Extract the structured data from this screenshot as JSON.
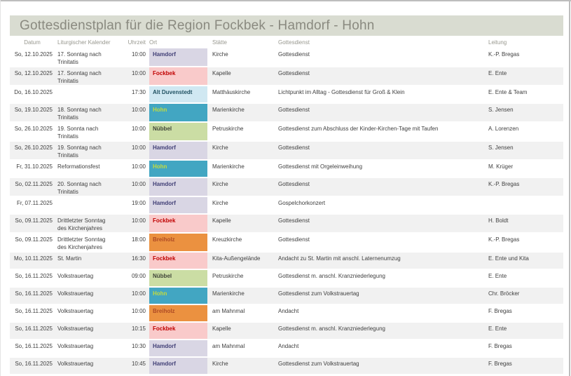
{
  "page": {
    "title": "Gottesdienstplan für die Region Fockbek - Hamdorf - Hohn"
  },
  "colors": {
    "title_bar_bg": "#d9dcd1",
    "title_text": "#8a8a80",
    "header_text": "#98988f",
    "body_text": "#3f3f3f",
    "stripe": "#f1f1f1",
    "frame_border": "#bdbdbd"
  },
  "table": {
    "columns": [
      "Datum",
      "Liturgischer Kalender",
      "Uhrzeit",
      "Ort",
      "Stätte",
      "Gottesdienst",
      "Leitung"
    ],
    "ort_styles": {
      "Hamdorf": {
        "bg": "#d9d6e4",
        "fg": "#403e75"
      },
      "Fockbek": {
        "bg": "#f9caca",
        "fg": "#c00000"
      },
      "Alt Duvenstedt": {
        "bg": "#d0e8f2",
        "fg": "#1f5061"
      },
      "Hohn": {
        "bg": "#42a6c2",
        "fg": "#c3db3d"
      },
      "Nübbel": {
        "bg": "#cbdda4",
        "fg": "#3f4438"
      },
      "Breiholz": {
        "bg": "#eb9140",
        "fg": "#ae4a24"
      }
    },
    "rows": [
      {
        "datum": "So, 12.10.2025",
        "kalender": "17. Sonntag nach Trinitatis",
        "uhrzeit": "10:00",
        "ort": "Hamdorf",
        "staette": "Kirche",
        "gottesdienst": "Gottesdienst",
        "leitung": "K.-P. Bregas"
      },
      {
        "datum": "So, 12.10.2025",
        "kalender": "17. Sonntag nach Trinitatis",
        "uhrzeit": "10:00",
        "ort": "Fockbek",
        "staette": "Kapelle",
        "gottesdienst": "Gottesdienst",
        "leitung": "E. Ente"
      },
      {
        "datum": "Do, 16.10.2025",
        "kalender": "",
        "uhrzeit": "17:30",
        "ort": "Alt Duvenstedt",
        "staette": "Matthäuskirche",
        "gottesdienst": "Lichtpunkt im Alltag - Gottesdienst für Groß & Klein",
        "leitung": "E. Ente & Team"
      },
      {
        "datum": "So, 19.10.2025",
        "kalender": "18. Sonntag nach Trinitatis",
        "uhrzeit": "10:00",
        "ort": "Hohn",
        "staette": "Marienkirche",
        "gottesdienst": "Gottesdienst",
        "leitung": "S. Jensen"
      },
      {
        "datum": "So, 26.10.2025",
        "kalender": "19. Sonnta nach Trinitatis",
        "uhrzeit": "10:00",
        "ort": "Nübbel",
        "staette": "Petruskirche",
        "gottesdienst": "Gottesdienst zum Abschluss der Kinder-Kirchen-Tage mit Taufen",
        "leitung": "A. Lorenzen"
      },
      {
        "datum": "So, 26.10.2025",
        "kalender": "19. Sonntag nach Trinitatis",
        "uhrzeit": "10:00",
        "ort": "Hamdorf",
        "staette": "Kirche",
        "gottesdienst": "Gottesdienst",
        "leitung": "S. Jensen"
      },
      {
        "datum": "Fr, 31.10.2025",
        "kalender": "Reformationsfest",
        "uhrzeit": "10:00",
        "ort": "Hohn",
        "staette": "Marienkirche",
        "gottesdienst": "Gottesdienst mit Orgeleinweihung",
        "leitung": "M. Krüger"
      },
      {
        "datum": "So, 02.11.2025",
        "kalender": "20. Sonntag nach Trinitatis",
        "uhrzeit": "10:00",
        "ort": "Hamdorf",
        "staette": "Kirche",
        "gottesdienst": "Gottesdienst",
        "leitung": "K.-P. Bregas"
      },
      {
        "datum": "Fr, 07.11.2025",
        "kalender": "",
        "uhrzeit": "19:00",
        "ort": "Hamdorf",
        "staette": "Kirche",
        "gottesdienst": "Gospelchorkonzert",
        "leitung": ""
      },
      {
        "datum": "So, 09.11.2025",
        "kalender": "Drittletzter Sonntag des Kirchenjahres",
        "uhrzeit": "10:00",
        "ort": "Fockbek",
        "staette": "Kapelle",
        "gottesdienst": "Gottesdienst",
        "leitung": "H. Boldt"
      },
      {
        "datum": "So, 09.11.2025",
        "kalender": "Drittletzter Sonntag des Kirchenjahres",
        "uhrzeit": "18:00",
        "ort": "Breiholz",
        "staette": "Kreuzkirche",
        "gottesdienst": "Gottesdienst",
        "leitung": "K.-P. Bregas"
      },
      {
        "datum": "Mo, 10.11.2025",
        "kalender": "St. Martin",
        "uhrzeit": "16:30",
        "ort": "Fockbek",
        "staette": "Kita-Außengelände",
        "gottesdienst": "Andacht zu St. Martin mit anschl. Laternenumzug",
        "leitung": "E. Ente und Kita"
      },
      {
        "datum": "So, 16.11.2025",
        "kalender": "Volkstrauertag",
        "uhrzeit": "09:00",
        "ort": "Nübbel",
        "staette": "Petruskirche",
        "gottesdienst": "Gottesdienst  m. anschl. Kranzniederlegung",
        "leitung": "E. Ente"
      },
      {
        "datum": "So, 16.11.2025",
        "kalender": "Volkstrauertag",
        "uhrzeit": "10:00",
        "ort": "Hohn",
        "staette": "Marienkirche",
        "gottesdienst": "Gottesdienst zum Volkstrauertag",
        "leitung": "Chr. Bröcker"
      },
      {
        "datum": "So, 16.11.2025",
        "kalender": "Volkstrauertag",
        "uhrzeit": "10:00",
        "ort": "Breiholz",
        "staette": "am Mahnmal",
        "gottesdienst": "Andacht",
        "leitung": "F. Bregas"
      },
      {
        "datum": "So, 16.11.2025",
        "kalender": "Volkstrauertag",
        "uhrzeit": "10:15",
        "ort": "Fockbek",
        "staette": "Kapelle",
        "gottesdienst": "Gottesdienst  m. anschl. Kranzniederlegung",
        "leitung": "E. Ente"
      },
      {
        "datum": "So, 16.11.2025",
        "kalender": "Volkstrauertag",
        "uhrzeit": "10:30",
        "ort": "Hamdorf",
        "staette": "am Mahnmal",
        "gottesdienst": "Andacht",
        "leitung": "F. Bregas"
      },
      {
        "datum": "So, 16.11.2025",
        "kalender": "Volkstrauertag",
        "uhrzeit": "10:45",
        "ort": "Hamdorf",
        "staette": "Kirche",
        "gottesdienst": "Gottesdienst zum Volkstrauertag",
        "leitung": "F. Bregas"
      }
    ]
  }
}
